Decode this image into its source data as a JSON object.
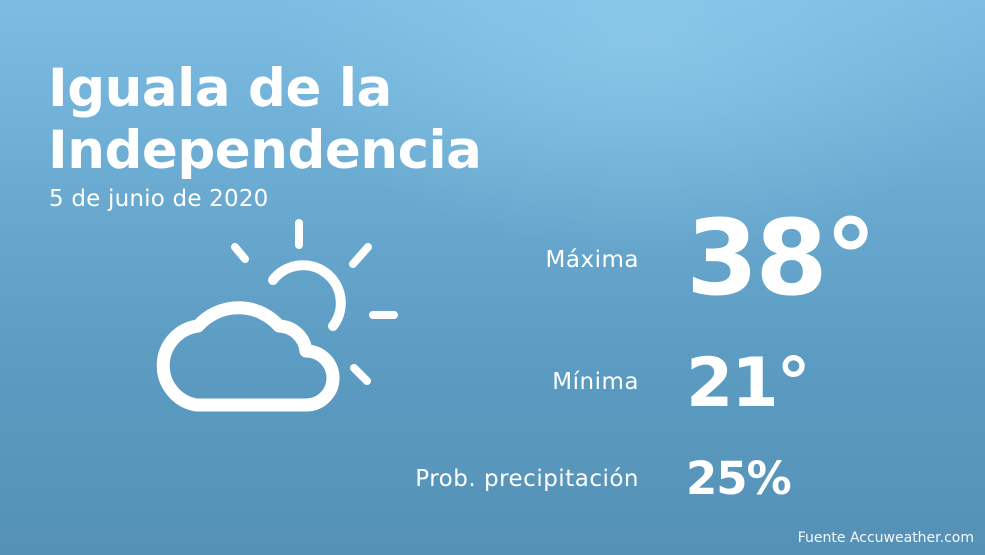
{
  "location": {
    "city": "Iguala de la Independencia",
    "date": "5 de junio de 2020"
  },
  "forecast": {
    "icon": "partly-cloudy-icon",
    "max_label": "Máxima",
    "max_value": "38°",
    "min_label": "Mínima",
    "min_value": "21°",
    "precip_label": "Prob. precipitación",
    "precip_value": "25%"
  },
  "footer": {
    "source": "Fuente Accuweather.com"
  },
  "colors": {
    "background_top": "#7dbde3",
    "background_bottom": "#5591b6",
    "text": "#ffffff"
  }
}
